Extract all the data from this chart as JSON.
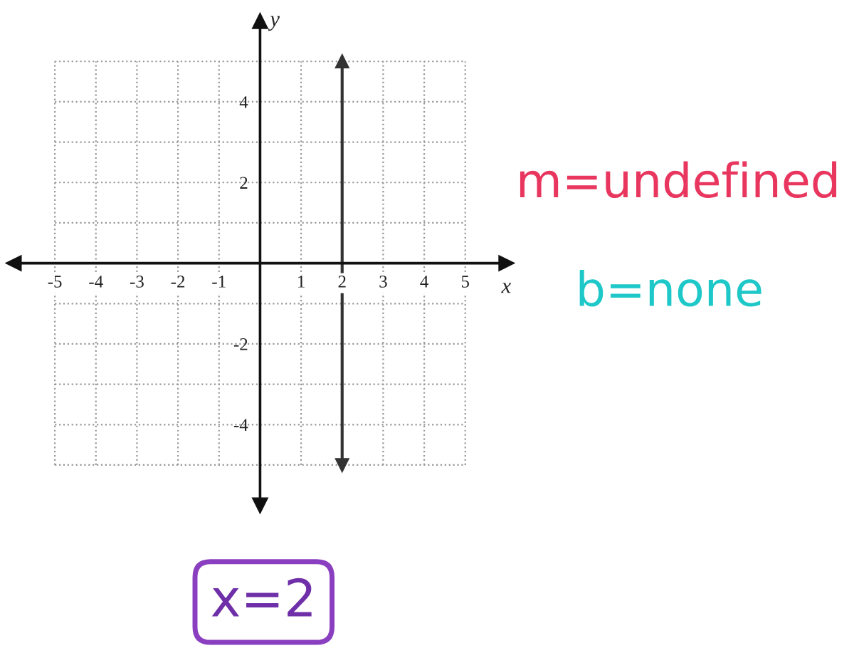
{
  "chart_data": {
    "type": "line",
    "xlabel": "x",
    "ylabel": "y",
    "series": [
      {
        "color": "#333333",
        "x": [
          2,
          2
        ],
        "values": [
          -5,
          5
        ]
      }
    ],
    "xlim": [
      -6,
      6
    ],
    "ylim": [
      -6,
      6
    ],
    "xticks": [
      -5,
      -4,
      -3,
      -2,
      -1,
      {
        "value": 0,
        "label": null
      },
      1,
      2,
      3,
      4,
      5
    ],
    "yticks": [
      {
        "value": -5,
        "label": null
      },
      -4,
      {
        "value": -3,
        "label": null
      },
      -2,
      {
        "value": -1,
        "label": null
      },
      {
        "value": 0,
        "label": null
      },
      {
        "value": 1,
        "label": null
      },
      2,
      {
        "value": 3,
        "label": null
      },
      4,
      {
        "value": 5,
        "label": null
      }
    ],
    "grid": true,
    "marker": "triangle",
    "line_style": "solid",
    "annotations": [
      "m=undefined",
      "b=none",
      "x=2"
    ]
  }
}
